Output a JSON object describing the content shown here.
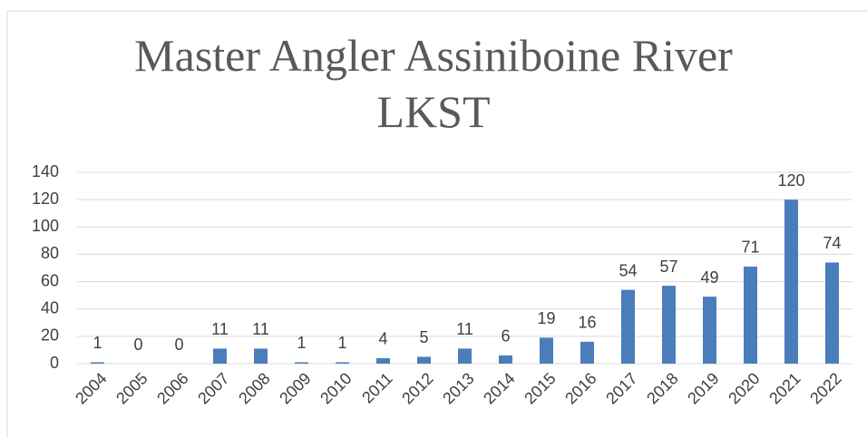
{
  "chart_data": {
    "type": "bar",
    "title": "Master Angler Assiniboine River LKST",
    "categories": [
      "2004",
      "2005",
      "2006",
      "2007",
      "2008",
      "2009",
      "2010",
      "2011",
      "2012",
      "2013",
      "2014",
      "2015",
      "2016",
      "2017",
      "2018",
      "2019",
      "2020",
      "2021",
      "2022"
    ],
    "values": [
      1,
      0,
      0,
      11,
      11,
      1,
      1,
      4,
      5,
      11,
      6,
      19,
      16,
      54,
      57,
      49,
      71,
      120,
      74
    ],
    "color": "#4a7ebb",
    "ylim": [
      0,
      140
    ],
    "yticks": [
      0,
      20,
      40,
      60,
      80,
      100,
      120,
      140
    ],
    "grid": true
  }
}
